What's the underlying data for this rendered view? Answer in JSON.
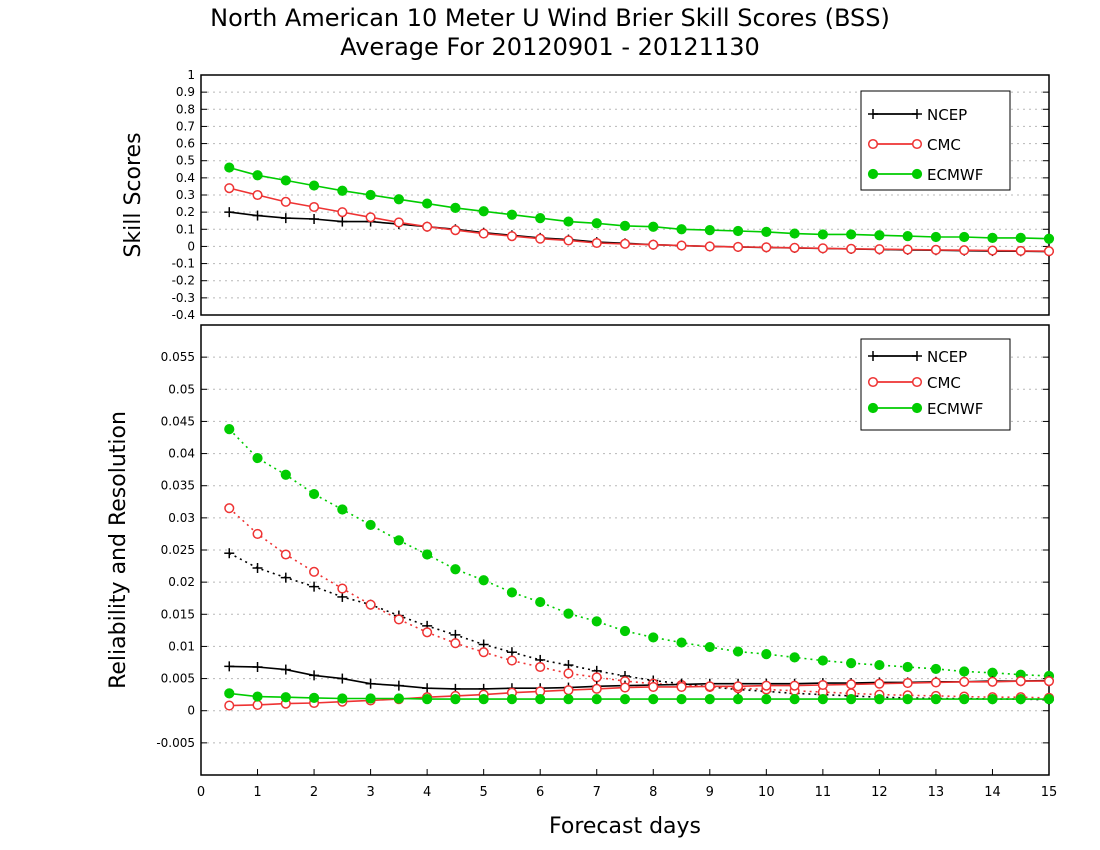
{
  "title": {
    "line1": "North American 10 Meter U Wind Brier Skill Scores (BSS)",
    "line2": "Average For 20120901 - 20121130"
  },
  "chart_data": [
    {
      "type": "line",
      "name": "top-panel",
      "ylabel": "Skill Scores",
      "xlim": [
        0,
        15
      ],
      "ylim": [
        -0.4,
        1
      ],
      "yticks": [
        -0.4,
        -0.3,
        -0.2,
        -0.1,
        0,
        0.1,
        0.2,
        0.3,
        0.4,
        0.5,
        0.6,
        0.7,
        0.8,
        0.9,
        1
      ],
      "ytick_labels": [
        "-0.4",
        "-0.3",
        "-0.2",
        "-0.1",
        "0",
        "0.1",
        "0.2",
        "0.3",
        "0.4",
        "0.5",
        "0.6",
        "0.7",
        "0.8",
        "0.9",
        "1"
      ],
      "grid": true,
      "legend_position": "top-right",
      "x": [
        0.5,
        1,
        1.5,
        2,
        2.5,
        3,
        3.5,
        4,
        4.5,
        5,
        5.5,
        6,
        6.5,
        7,
        7.5,
        8,
        8.5,
        9,
        9.5,
        10,
        10.5,
        11,
        11.5,
        12,
        12.5,
        13,
        13.5,
        14,
        14.5,
        15
      ],
      "series": [
        {
          "name": "NCEP",
          "color": "#000000",
          "marker": "plus",
          "dash": "solid",
          "values": [
            0.2,
            0.18,
            0.165,
            0.16,
            0.145,
            0.145,
            0.13,
            0.115,
            0.1,
            0.08,
            0.065,
            0.05,
            0.04,
            0.025,
            0.018,
            0.01,
            0.005,
            0.0,
            -0.003,
            -0.006,
            -0.009,
            -0.012,
            -0.015,
            -0.018,
            -0.02,
            -0.022,
            -0.025,
            -0.027,
            -0.028,
            -0.03
          ]
        },
        {
          "name": "CMC",
          "color": "#ee3333",
          "marker": "circle-open",
          "dash": "solid",
          "values": [
            0.34,
            0.3,
            0.26,
            0.23,
            0.2,
            0.17,
            0.14,
            0.115,
            0.095,
            0.075,
            0.06,
            0.045,
            0.035,
            0.02,
            0.015,
            0.01,
            0.005,
            0.0,
            -0.003,
            -0.005,
            -0.008,
            -0.011,
            -0.014,
            -0.016,
            -0.018,
            -0.02,
            -0.022,
            -0.024,
            -0.026,
            -0.028
          ]
        },
        {
          "name": "ECMWF",
          "color": "#00cc00",
          "marker": "circle-filled",
          "dash": "solid",
          "values": [
            0.46,
            0.415,
            0.385,
            0.355,
            0.325,
            0.3,
            0.275,
            0.25,
            0.225,
            0.205,
            0.185,
            0.165,
            0.145,
            0.135,
            0.12,
            0.115,
            0.1,
            0.095,
            0.09,
            0.085,
            0.075,
            0.07,
            0.07,
            0.065,
            0.06,
            0.055,
            0.055,
            0.05,
            0.05,
            0.045
          ]
        }
      ]
    },
    {
      "type": "line",
      "name": "bottom-panel",
      "ylabel": "Reliability and Resolution",
      "xlabel": "Forecast days",
      "xlim": [
        0,
        15
      ],
      "ylim": [
        -0.01,
        0.06
      ],
      "xticks": [
        0,
        1,
        2,
        3,
        4,
        5,
        6,
        7,
        8,
        9,
        10,
        11,
        12,
        13,
        14,
        15
      ],
      "yticks": [
        -0.005,
        0,
        0.005,
        0.01,
        0.015,
        0.02,
        0.025,
        0.03,
        0.035,
        0.04,
        0.045,
        0.05,
        0.055
      ],
      "ytick_labels": [
        "-0.005",
        "0",
        "0.005",
        "0.01",
        "0.015",
        "0.02",
        "0.025",
        "0.03",
        "0.035",
        "0.04",
        "0.045",
        "0.05",
        "0.055"
      ],
      "grid": true,
      "legend_position": "top-right",
      "x": [
        0.5,
        1,
        1.5,
        2,
        2.5,
        3,
        3.5,
        4,
        4.5,
        5,
        5.5,
        6,
        6.5,
        7,
        7.5,
        8,
        8.5,
        9,
        9.5,
        10,
        10.5,
        11,
        11.5,
        12,
        12.5,
        13,
        13.5,
        14,
        14.5,
        15
      ],
      "series": [
        {
          "name": "NCEP",
          "color": "#000000",
          "marker": "plus",
          "dash": "dotted",
          "values": [
            0.0245,
            0.0222,
            0.0207,
            0.0193,
            0.0177,
            0.0165,
            0.0148,
            0.0132,
            0.0118,
            0.0103,
            0.0091,
            0.0079,
            0.0071,
            0.0062,
            0.0054,
            0.0047,
            0.0042,
            0.0037,
            0.0033,
            0.003,
            0.0027,
            0.0025,
            0.0023,
            0.0021,
            0.002,
            0.0019,
            0.0019,
            0.0018,
            0.0018,
            0.0017
          ]
        },
        {
          "name": "CMC",
          "color": "#ee3333",
          "marker": "circle-open",
          "dash": "dotted",
          "values": [
            0.0315,
            0.0275,
            0.0243,
            0.0216,
            0.019,
            0.0165,
            0.0142,
            0.0122,
            0.0105,
            0.0091,
            0.0078,
            0.0068,
            0.0058,
            0.0052,
            0.0046,
            0.0042,
            0.004,
            0.0037,
            0.0035,
            0.0033,
            0.0031,
            0.0029,
            0.0027,
            0.0025,
            0.0024,
            0.0023,
            0.0022,
            0.0021,
            0.0021,
            0.002
          ]
        },
        {
          "name": "ECMWF",
          "color": "#00cc00",
          "marker": "circle-filled",
          "dash": "dotted",
          "values": [
            0.0438,
            0.0393,
            0.0367,
            0.0337,
            0.0313,
            0.0289,
            0.0265,
            0.0243,
            0.022,
            0.0203,
            0.0184,
            0.0169,
            0.0151,
            0.0139,
            0.0124,
            0.0114,
            0.0106,
            0.0099,
            0.0092,
            0.0088,
            0.0083,
            0.0078,
            0.0074,
            0.0071,
            0.0068,
            0.0065,
            0.0061,
            0.0059,
            0.0056,
            0.0054
          ]
        },
        {
          "name": "NCEP",
          "color": "#000000",
          "marker": "plus",
          "dash": "solid",
          "values": [
            0.0069,
            0.0068,
            0.0064,
            0.0055,
            0.005,
            0.0042,
            0.0039,
            0.0035,
            0.0034,
            0.0034,
            0.0035,
            0.0035,
            0.0036,
            0.0038,
            0.0039,
            0.004,
            0.0041,
            0.0042,
            0.0042,
            0.0042,
            0.0042,
            0.0043,
            0.0043,
            0.0044,
            0.0044,
            0.0045,
            0.0045,
            0.0046,
            0.0046,
            0.0047
          ]
        },
        {
          "name": "CMC",
          "color": "#ee3333",
          "marker": "circle-open",
          "dash": "solid",
          "values": [
            0.0008,
            0.0009,
            0.0011,
            0.0012,
            0.0014,
            0.0016,
            0.0018,
            0.0021,
            0.0023,
            0.0025,
            0.0028,
            0.003,
            0.0032,
            0.0034,
            0.0036,
            0.0037,
            0.0037,
            0.0038,
            0.0038,
            0.0039,
            0.0039,
            0.004,
            0.0041,
            0.0042,
            0.0043,
            0.0044,
            0.0045,
            0.0045,
            0.0046,
            0.0046
          ]
        },
        {
          "name": "ECMWF",
          "color": "#00cc00",
          "marker": "circle-filled",
          "dash": "solid",
          "values": [
            0.0027,
            0.0022,
            0.0021,
            0.002,
            0.0019,
            0.0019,
            0.0019,
            0.0018,
            0.0018,
            0.0018,
            0.0018,
            0.0018,
            0.0018,
            0.0018,
            0.0018,
            0.0018,
            0.0018,
            0.0018,
            0.0018,
            0.0018,
            0.0018,
            0.0018,
            0.0018,
            0.0018,
            0.0018,
            0.0018,
            0.0018,
            0.0018,
            0.0018,
            0.0018
          ]
        }
      ],
      "legend": [
        {
          "name": "NCEP",
          "color": "#000000",
          "marker": "plus"
        },
        {
          "name": "CMC",
          "color": "#ee3333",
          "marker": "circle-open"
        },
        {
          "name": "ECMWF",
          "color": "#00cc00",
          "marker": "circle-filled"
        }
      ]
    }
  ]
}
